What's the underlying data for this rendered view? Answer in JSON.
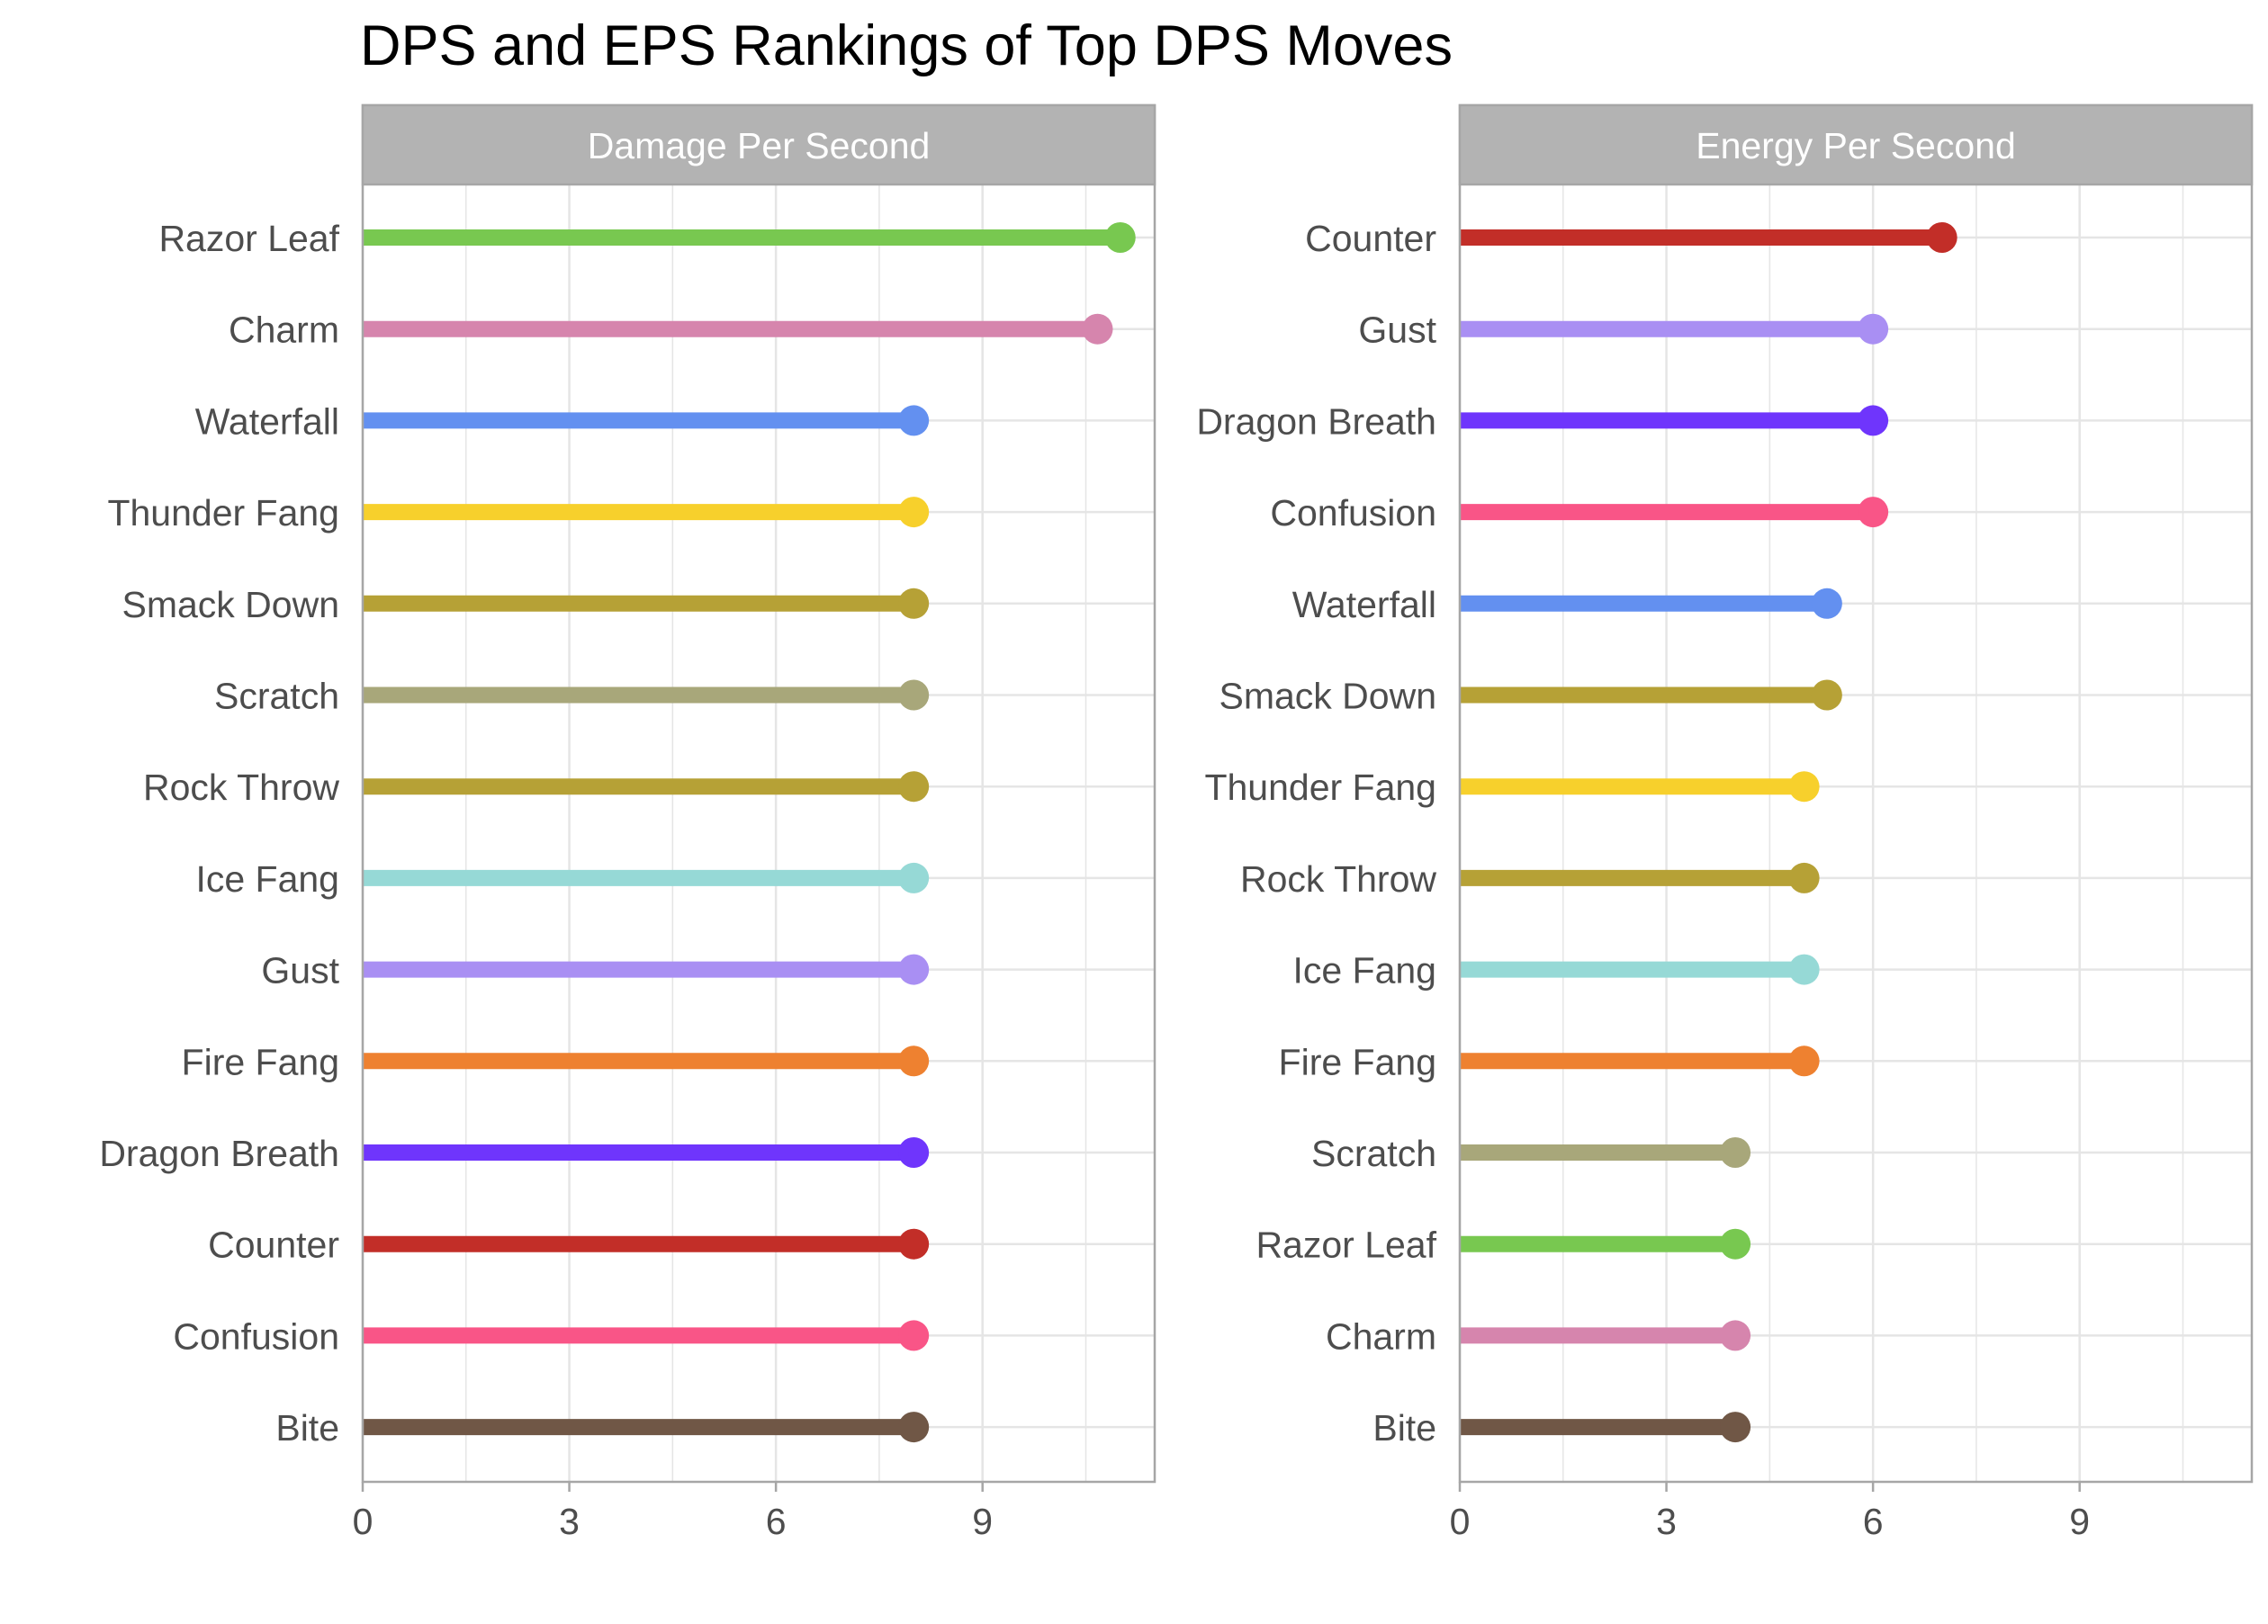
{
  "chart_data": {
    "type": "lollipop",
    "title": "DPS and EPS Rankings of Top DPS Moves",
    "xlim": [
      0,
      11.5
    ],
    "x_ticks": [
      0,
      3,
      6,
      9
    ],
    "grid": true,
    "panels": [
      {
        "strip_label": "Damage Per Second",
        "categories": [
          "Razor Leaf",
          "Charm",
          "Waterfall",
          "Thunder Fang",
          "Smack Down",
          "Scratch",
          "Rock Throw",
          "Ice Fang",
          "Gust",
          "Fire Fang",
          "Dragon Breath",
          "Counter",
          "Confusion",
          "Bite"
        ],
        "values": [
          11,
          10.67,
          8,
          8,
          8,
          8,
          8,
          8,
          8,
          8,
          8,
          8,
          8,
          8
        ]
      },
      {
        "strip_label": "Energy Per Second",
        "categories": [
          "Counter",
          "Gust",
          "Dragon Breath",
          "Confusion",
          "Waterfall",
          "Smack Down",
          "Thunder Fang",
          "Rock Throw",
          "Ice Fang",
          "Fire Fang",
          "Scratch",
          "Razor Leaf",
          "Charm",
          "Bite"
        ],
        "values": [
          7,
          6,
          6,
          6,
          5.33,
          5.33,
          5,
          5,
          5,
          5,
          4,
          4,
          4,
          4
        ]
      }
    ],
    "colors": {
      "Razor Leaf": "#78C850",
      "Charm": "#D685AD",
      "Waterfall": "#6390F0",
      "Thunder Fang": "#F7D02C",
      "Smack Down": "#B6A136",
      "Scratch": "#A8A77A",
      "Rock Throw": "#B6A136",
      "Ice Fang": "#96D9D6",
      "Gust": "#A98FF3",
      "Fire Fang": "#EE8130",
      "Dragon Breath": "#6F35FC",
      "Counter": "#C22E28",
      "Confusion": "#F95587",
      "Bite": "#705746"
    },
    "strip_color": "#B3B3B3",
    "grid_color": "#E5E5E5",
    "border_color": "#A6A6A6",
    "text_color": "#4D4D4D"
  }
}
